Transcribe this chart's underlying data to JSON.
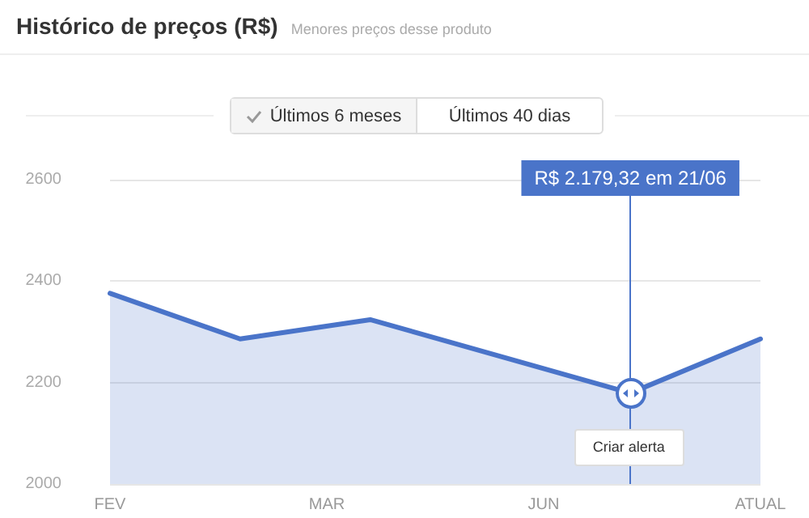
{
  "chart_data": {
    "type": "area",
    "title": "Histórico de preços (R$)",
    "subtitle": "Menores preços desse produto",
    "categories": [
      "FEV",
      null,
      null,
      null,
      null,
      "MAR",
      null,
      null,
      null,
      null,
      "JUN",
      null,
      null,
      null,
      null,
      "ATUAL"
    ],
    "values": [
      2376,
      null,
      null,
      2286,
      null,
      null,
      2324,
      null,
      null,
      null,
      null,
      null,
      2179.32,
      null,
      null,
      2286
    ],
    "color": "#4a74c9",
    "ylim": [
      2000,
      2600
    ],
    "yticks": [
      2000,
      2200,
      2400,
      2600
    ],
    "grid": "y",
    "marker": "none",
    "line_style": "solid",
    "annotations": [
      "R$ 2.179,32 em 21/06",
      "Últimos 6 meses",
      "Últimos 40 dias",
      "Criar alerta"
    ]
  }
}
